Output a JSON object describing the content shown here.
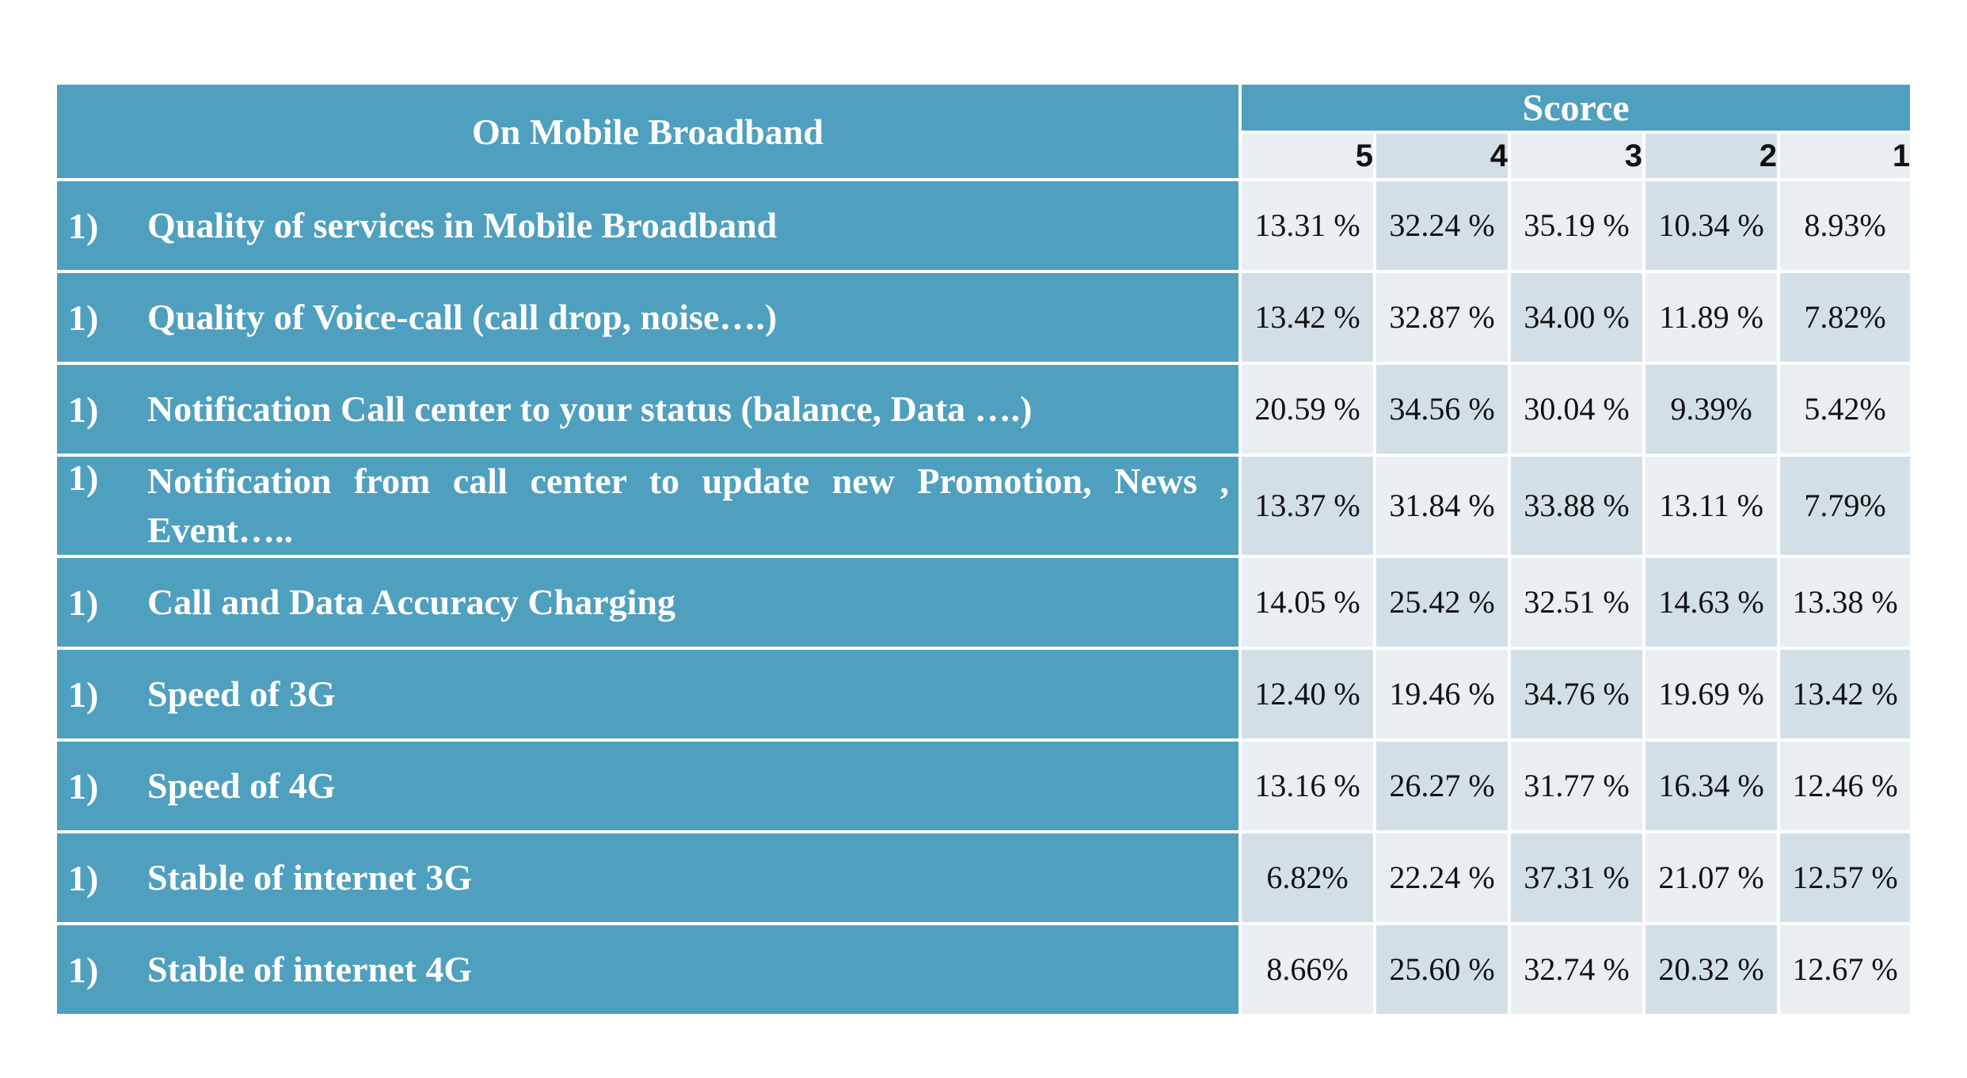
{
  "header": {
    "title": "On Mobile Broadband",
    "score_label": "Scorce",
    "score_columns": [
      "5",
      "4",
      "3",
      "2",
      "1"
    ]
  },
  "rows": [
    {
      "num": "1)",
      "label": "Quality of services in Mobile Broadband",
      "values": [
        "13.31 %",
        "32.24 %",
        "35.19 %",
        "10.34 %",
        "8.93%"
      ]
    },
    {
      "num": "1)",
      "label": "Quality of Voice-call (call drop, noise….)",
      "values": [
        "13.42 %",
        "32.87 %",
        "34.00 %",
        "11.89 %",
        "7.82%"
      ]
    },
    {
      "num": "1)",
      "label": "Notification Call center to your status (balance, Data ….)",
      "values": [
        "20.59 %",
        "34.56 %",
        "30.04 %",
        "9.39%",
        "5.42%"
      ]
    },
    {
      "num": "1)",
      "label": "Notification from call center to update new Promotion, News , Event…..",
      "values": [
        "13.37 %",
        "31.84 %",
        "33.88 %",
        "13.11 %",
        "7.79%"
      ]
    },
    {
      "num": "1)",
      "label": "Call and Data Accuracy Charging",
      "values": [
        "14.05 %",
        "25.42 %",
        "32.51 %",
        "14.63 %",
        "13.38 %"
      ]
    },
    {
      "num": "1)",
      "label": "Speed of 3G",
      "values": [
        "12.40 %",
        "19.46 %",
        "34.76 %",
        "19.69 %",
        "13.42 %"
      ]
    },
    {
      "num": "1)",
      "label": "Speed of 4G",
      "values": [
        "13.16 %",
        "26.27 %",
        "31.77 %",
        "16.34 %",
        "12.46 %"
      ]
    },
    {
      "num": "1)",
      "label": "Stable of internet 3G",
      "values": [
        "6.82%",
        "22.24 %",
        "37.31 %",
        "21.07 %",
        "12.57 %"
      ]
    },
    {
      "num": "1)",
      "label": "Stable of internet 4G",
      "values": [
        "8.66%",
        "25.60 %",
        "32.74 %",
        "20.32 %",
        "12.67 %"
      ]
    }
  ],
  "colors": {
    "header_bg": "#4f9fbf",
    "cell_light": "#e8eef1",
    "cell_dark": "#d3dfe6"
  }
}
